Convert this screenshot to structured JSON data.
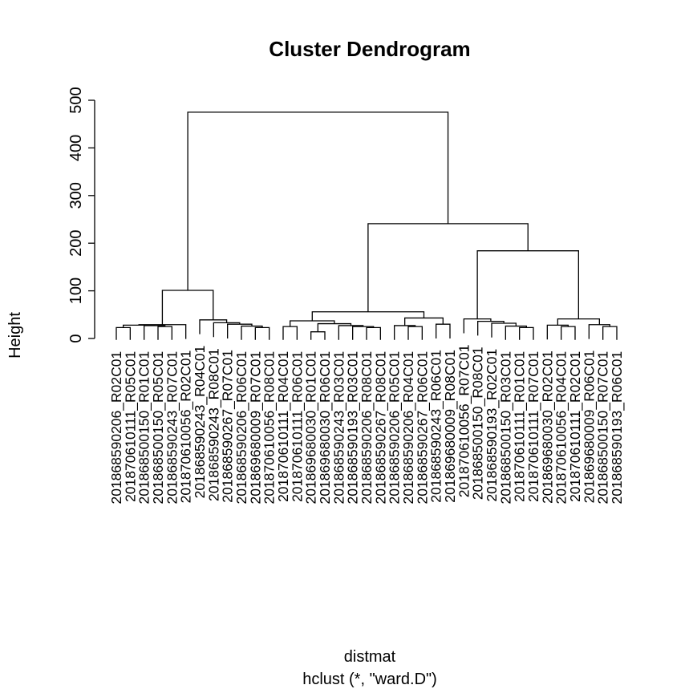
{
  "chart_data": {
    "type": "dendrogram",
    "title": "Cluster Dendrogram",
    "xlabel": "distmat",
    "sub": "hclust (*, \"ward.D\")",
    "ylabel": "Height",
    "ylim": [
      0,
      500
    ],
    "yticks": [
      "0",
      "100",
      "200",
      "300",
      "400",
      "500"
    ],
    "leaves": [
      "20186859020​6_R02C01",
      "201870610111_R05C01",
      "201868500150_R01C01",
      "201868500150_R05C01",
      "201868590243_R07C01",
      "201870610056_R02C01",
      "201868590243_R04C01",
      "201868590243_R08C01",
      "201868590267_R07C01",
      "201868590206_R06C01",
      "201869680009_R07C01",
      "201870610056_R08C01",
      "201870610111_R04C01",
      "201870610111_R06C01",
      "201869680030_R01C01",
      "201869680030_R06C01",
      "201868590243_R03C01",
      "201868590193_R03C01",
      "201868590206_R08C01",
      "201868590267_R08C01",
      "201868590206_R05C01",
      "201868590206_R04C01",
      "201868590267_R06C01",
      "201868590243_R06C01",
      "201869680009_R08C01",
      "201870610056_R07C01",
      "201868500150_R08C01",
      "201868590193_R02C01",
      "201868500150_R03C01",
      "201870610111_R01C01",
      "201870610111_R07C01",
      "201869680030_R02C01",
      "201870610056_R04C01",
      "201870610111_R02C01",
      "201869680009_R06C01",
      "201868500150_R07C01",
      "201868590193_R06C01"
    ],
    "merges": [
      {
        "a": "L0",
        "b": "L1",
        "h": 23,
        "id": "m1"
      },
      {
        "a": "L3",
        "b": "L4",
        "h": 25,
        "id": "m2"
      },
      {
        "a": "L2",
        "b": "m2",
        "h": 27,
        "id": "m3"
      },
      {
        "a": "m1",
        "b": "m3",
        "h": 28,
        "id": "m4"
      },
      {
        "a": "m4",
        "b": "L5",
        "h": 29,
        "id": "m5"
      },
      {
        "a": "L10",
        "b": "L11",
        "h": 23,
        "id": "m6"
      },
      {
        "a": "L9",
        "b": "m6",
        "h": 26,
        "id": "m7"
      },
      {
        "a": "L8",
        "b": "m7",
        "h": 30,
        "id": "m8"
      },
      {
        "a": "L7",
        "b": "m8",
        "h": 33,
        "id": "m9"
      },
      {
        "a": "L6",
        "b": "m9",
        "h": 39,
        "id": "m10"
      },
      {
        "a": "m5",
        "b": "m10",
        "h": 101,
        "id": "m11"
      },
      {
        "a": "L12",
        "b": "L13",
        "h": 25,
        "id": "m12"
      },
      {
        "a": "L14",
        "b": "L15",
        "h": 14,
        "id": "m13"
      },
      {
        "a": "L18",
        "b": "L19",
        "h": 23,
        "id": "m14"
      },
      {
        "a": "L17",
        "b": "m14",
        "h": 25,
        "id": "m15"
      },
      {
        "a": "L16",
        "b": "m15",
        "h": 27,
        "id": "m16"
      },
      {
        "a": "m13",
        "b": "m16",
        "h": 31,
        "id": "m17"
      },
      {
        "a": "m12",
        "b": "m17",
        "h": 37,
        "id": "m18"
      },
      {
        "a": "L21",
        "b": "L22",
        "h": 25,
        "id": "m19"
      },
      {
        "a": "L20",
        "b": "m19",
        "h": 27,
        "id": "m20"
      },
      {
        "a": "L23",
        "b": "L24",
        "h": 30,
        "id": "m21"
      },
      {
        "a": "m20",
        "b": "m21",
        "h": 43,
        "id": "m22"
      },
      {
        "a": "m18",
        "b": "m22",
        "h": 56,
        "id": "m23"
      },
      {
        "a": "L29",
        "b": "L30",
        "h": 23,
        "id": "m24"
      },
      {
        "a": "L28",
        "b": "m24",
        "h": 26,
        "id": "m25"
      },
      {
        "a": "L27",
        "b": "m25",
        "h": 32,
        "id": "m26"
      },
      {
        "a": "L26",
        "b": "m26",
        "h": 36,
        "id": "m27"
      },
      {
        "a": "L25",
        "b": "m27",
        "h": 41,
        "id": "m28"
      },
      {
        "a": "L32",
        "b": "L33",
        "h": 25,
        "id": "m29"
      },
      {
        "a": "L31",
        "b": "m29",
        "h": 28,
        "id": "m30"
      },
      {
        "a": "L35",
        "b": "L36",
        "h": 25,
        "id": "m31"
      },
      {
        "a": "L34",
        "b": "m31",
        "h": 29,
        "id": "m32"
      },
      {
        "a": "m30",
        "b": "m32",
        "h": 41,
        "id": "m33"
      },
      {
        "a": "m28",
        "b": "m33",
        "h": 184,
        "id": "m34"
      },
      {
        "a": "m23",
        "b": "m34",
        "h": 241,
        "id": "m35"
      },
      {
        "a": "m11",
        "b": "m35",
        "h": 475,
        "id": "m36"
      }
    ]
  }
}
